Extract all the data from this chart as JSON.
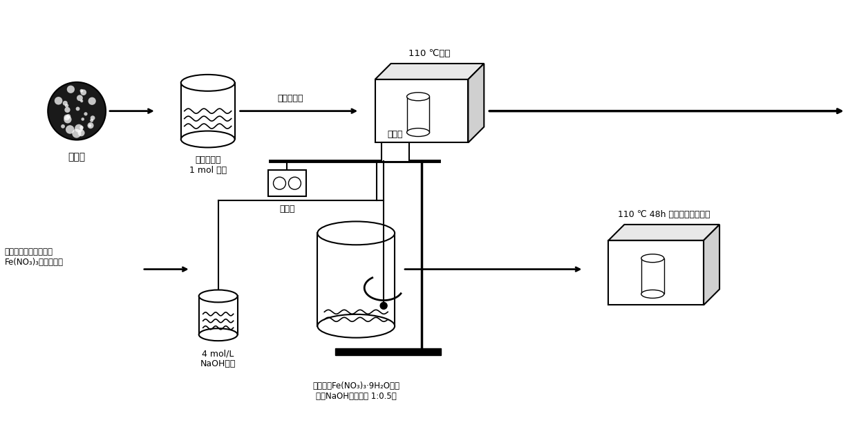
{
  "bg_color": "#ffffff",
  "text_color": "#000000",
  "line_color": "#000000",
  "title": "",
  "labels": {
    "diatomite": "硅藻土",
    "slurry": "硅藻土浸泡\n1 mol 盐酸",
    "oven_top": "110 ℃烘干",
    "wash": "去离子水洗",
    "naoh_solution": "4 mol/L\nNaOH溶液",
    "stirrer_label": "搅拌器",
    "regulator": "调节器",
    "reactor_label": "硅藻土与Fe(NO₃)₃·9H₂O溶液\n（与NaOH摩尔比为 1:0.5）",
    "oven_bottom": "110 ℃ 48h 烘干，过筛，保存",
    "left_arrow_text": "纯化硅藻土中加入适量\nFe(NO₃)₃溶液，搅拌"
  }
}
